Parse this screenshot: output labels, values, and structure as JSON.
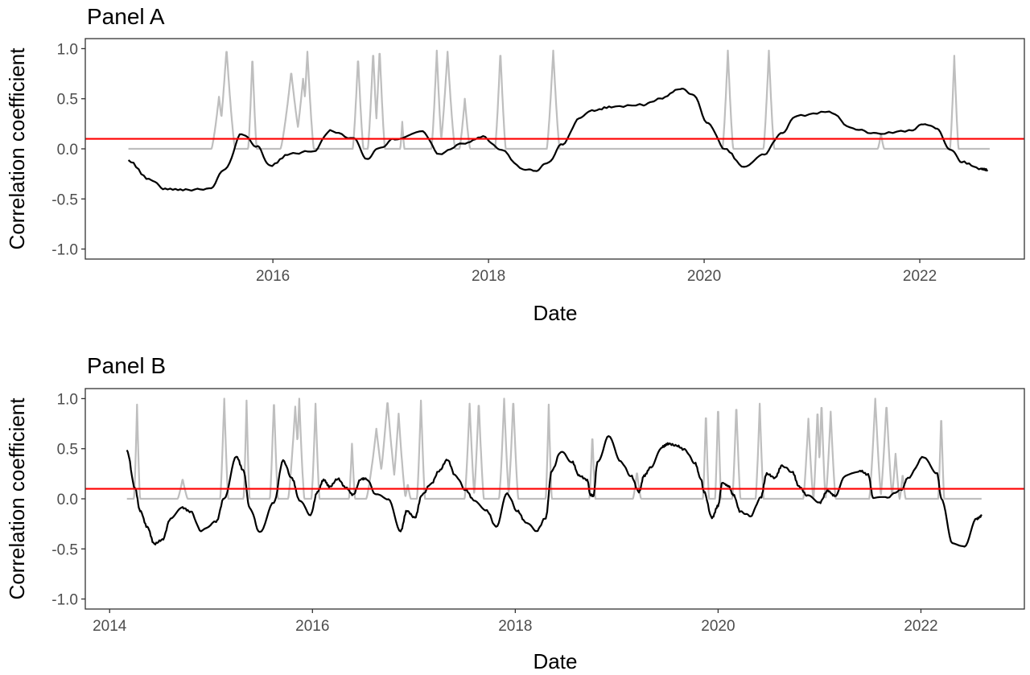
{
  "chart_data": [
    {
      "type": "line",
      "title": "Panel A",
      "xlabel": "Date",
      "ylabel": "Correlation coefficient",
      "xlim": [
        2014.26,
        2022.97
      ],
      "ylim": [
        -1.1,
        1.1
      ],
      "x_ticks": [
        2016,
        2018,
        2020,
        2022
      ],
      "x_tick_labels": [
        "2016",
        "2018",
        "2020",
        "2022"
      ],
      "y_ticks": [
        -1.0,
        -0.5,
        0.0,
        0.5,
        1.0
      ],
      "y_tick_labels": [
        "-1.0",
        "-0.5",
        "0.0",
        "0.5",
        "1.0"
      ],
      "grid": false,
      "reference_line": {
        "y": 0.1,
        "color": "#ff0000"
      },
      "series": [
        {
          "name": "correlation",
          "color": "#000000",
          "x": [
            2014.66,
            2014.85,
            2015.0,
            2015.19,
            2015.41,
            2015.56,
            2015.71,
            2015.86,
            2015.97,
            2016.16,
            2016.38,
            2016.53,
            2016.75,
            2016.87,
            2016.98,
            2017.13,
            2017.39,
            2017.54,
            2017.76,
            2017.95,
            2018.1,
            2018.32,
            2018.43,
            2018.54,
            2018.69,
            2018.84,
            2018.96,
            2019.14,
            2019.44,
            2019.59,
            2019.78,
            2019.89,
            2020.04,
            2020.19,
            2020.37,
            2020.56,
            2020.71,
            2020.86,
            2021.16,
            2021.38,
            2021.6,
            2021.9,
            2022.05,
            2022.16,
            2022.28,
            2022.39,
            2022.57,
            2022.63
          ],
          "y": [
            -0.12,
            -0.3,
            -0.4,
            -0.41,
            -0.4,
            -0.2,
            0.15,
            0.02,
            -0.17,
            -0.05,
            -0.02,
            0.18,
            0.1,
            -0.1,
            0.0,
            0.1,
            0.17,
            -0.05,
            0.05,
            0.12,
            0.0,
            -0.2,
            -0.22,
            -0.15,
            0.05,
            0.3,
            0.38,
            0.42,
            0.44,
            0.5,
            0.6,
            0.55,
            0.25,
            0.0,
            -0.18,
            -0.05,
            0.15,
            0.33,
            0.37,
            0.2,
            0.15,
            0.18,
            0.25,
            0.2,
            0.0,
            -0.13,
            -0.2,
            -0.21
          ]
        },
        {
          "name": "indicator",
          "color": "#bebebe",
          "x_range": [
            2014.66,
            2022.65
          ],
          "baseline": 0,
          "spikes": [
            {
              "x": 2015.5,
              "peak": 0.52,
              "half_width": 0.07
            },
            {
              "x": 2015.57,
              "peak": 1.0,
              "half_width": 0.08
            },
            {
              "x": 2015.81,
              "peak": 0.93,
              "half_width": 0.04
            },
            {
              "x": 2016.17,
              "peak": 0.77,
              "half_width": 0.1
            },
            {
              "x": 2016.28,
              "peak": 0.7,
              "half_width": 0.08
            },
            {
              "x": 2016.32,
              "peak": 0.97,
              "half_width": 0.06
            },
            {
              "x": 2016.79,
              "peak": 0.92,
              "half_width": 0.05
            },
            {
              "x": 2016.93,
              "peak": 0.98,
              "half_width": 0.05
            },
            {
              "x": 2016.99,
              "peak": 1.0,
              "half_width": 0.05
            },
            {
              "x": 2017.2,
              "peak": 0.27,
              "half_width": 0.02
            },
            {
              "x": 2017.52,
              "peak": 0.98,
              "half_width": 0.05
            },
            {
              "x": 2017.62,
              "peak": 0.97,
              "half_width": 0.07
            },
            {
              "x": 2017.78,
              "peak": 0.5,
              "half_width": 0.05
            },
            {
              "x": 2018.11,
              "peak": 0.98,
              "half_width": 0.05
            },
            {
              "x": 2018.6,
              "peak": 0.98,
              "half_width": 0.06
            },
            {
              "x": 2020.22,
              "peak": 0.98,
              "half_width": 0.05
            },
            {
              "x": 2020.6,
              "peak": 0.98,
              "half_width": 0.05
            },
            {
              "x": 2021.64,
              "peak": 0.15,
              "half_width": 0.03
            },
            {
              "x": 2022.32,
              "peak": 0.93,
              "half_width": 0.04
            }
          ]
        }
      ]
    },
    {
      "type": "line",
      "title": "Panel B",
      "xlabel": "Date",
      "ylabel": "Correlation coefficient",
      "xlim": [
        2013.76,
        2023.02
      ],
      "ylim": [
        -1.1,
        1.1
      ],
      "x_ticks": [
        2014,
        2016,
        2018,
        2020,
        2022
      ],
      "x_tick_labels": [
        "2014",
        "2016",
        "2018",
        "2020",
        "2022"
      ],
      "y_ticks": [
        -1.0,
        -0.5,
        0.0,
        0.5,
        1.0
      ],
      "y_tick_labels": [
        "-1.0",
        "-0.5",
        "0.0",
        "0.5",
        "1.0"
      ],
      "grid": false,
      "reference_line": {
        "y": 0.1,
        "color": "#ff0000"
      },
      "series": [
        {
          "name": "correlation",
          "color": "#000000",
          "x": [
            2014.17,
            2014.25,
            2014.3,
            2014.37,
            2014.44,
            2014.52,
            2014.6,
            2014.72,
            2014.8,
            2014.9,
            2015.05,
            2015.13,
            2015.25,
            2015.32,
            2015.38,
            2015.48,
            2015.62,
            2015.71,
            2015.8,
            2015.87,
            2015.98,
            2016.05,
            2016.11,
            2016.17,
            2016.25,
            2016.33,
            2016.4,
            2016.48,
            2016.53,
            2016.63,
            2016.75,
            2016.87,
            2016.93,
            2017.01,
            2017.08,
            2017.17,
            2017.25,
            2017.33,
            2017.41,
            2017.51,
            2017.59,
            2017.72,
            2017.81,
            2017.92,
            2018.02,
            2018.1,
            2018.21,
            2018.3,
            2018.36,
            2018.45,
            2018.56,
            2018.63,
            2018.71,
            2018.74,
            2018.77,
            2018.81,
            2018.92,
            2019.04,
            2019.14,
            2019.22,
            2019.27,
            2019.34,
            2019.45,
            2019.51,
            2019.59,
            2019.67,
            2019.77,
            2019.83,
            2019.86,
            2019.94,
            2020.0,
            2020.04,
            2020.1,
            2020.15,
            2020.22,
            2020.32,
            2020.42,
            2020.48,
            2020.56,
            2020.63,
            2020.73,
            2020.8,
            2020.88,
            2021.0,
            2021.08,
            2021.15,
            2021.26,
            2021.4,
            2021.48,
            2021.53,
            2021.65,
            2021.81,
            2021.87,
            2022.03,
            2022.16,
            2022.2,
            2022.31,
            2022.43,
            2022.55,
            2022.6
          ],
          "y": [
            0.48,
            0.11,
            -0.12,
            -0.28,
            -0.45,
            -0.41,
            -0.2,
            -0.09,
            -0.13,
            -0.32,
            -0.23,
            0.01,
            0.42,
            0.28,
            -0.09,
            -0.33,
            -0.04,
            0.38,
            0.2,
            -0.01,
            -0.16,
            0.07,
            0.19,
            0.12,
            0.2,
            0.11,
            0.04,
            0.2,
            0.2,
            0.04,
            -0.01,
            -0.32,
            -0.12,
            -0.19,
            0.04,
            0.15,
            0.28,
            0.39,
            0.23,
            0.09,
            -0.01,
            -0.12,
            -0.28,
            0.05,
            -0.12,
            -0.23,
            -0.32,
            -0.19,
            0.28,
            0.47,
            0.37,
            0.23,
            0.19,
            0.04,
            0.03,
            0.36,
            0.62,
            0.37,
            0.23,
            0.07,
            0.23,
            0.32,
            0.52,
            0.55,
            0.53,
            0.49,
            0.36,
            0.2,
            0.07,
            -0.19,
            -0.07,
            0.16,
            0.13,
            0.04,
            -0.13,
            -0.17,
            0.01,
            0.25,
            0.21,
            0.33,
            0.27,
            0.12,
            0.03,
            -0.04,
            0.08,
            0.03,
            0.23,
            0.28,
            0.24,
            0.01,
            0.01,
            0.09,
            0.21,
            0.42,
            0.25,
            0.01,
            -0.44,
            -0.47,
            -0.2,
            -0.17
          ]
        },
        {
          "name": "indicator",
          "color": "#bebebe",
          "x_range": [
            2014.17,
            2022.6
          ],
          "baseline": 0,
          "spikes": [
            {
              "x": 2014.27,
              "peak": 0.94,
              "half_width": 0.03
            },
            {
              "x": 2014.72,
              "peak": 0.2,
              "half_width": 0.05
            },
            {
              "x": 2015.13,
              "peak": 1.0,
              "half_width": 0.04
            },
            {
              "x": 2015.35,
              "peak": 0.98,
              "half_width": 0.03
            },
            {
              "x": 2015.62,
              "peak": 1.0,
              "half_width": 0.04
            },
            {
              "x": 2015.83,
              "peak": 0.92,
              "half_width": 0.07
            },
            {
              "x": 2015.87,
              "peak": 1.0,
              "half_width": 0.05
            },
            {
              "x": 2016.03,
              "peak": 0.95,
              "half_width": 0.04
            },
            {
              "x": 2016.39,
              "peak": 0.55,
              "half_width": 0.03
            },
            {
              "x": 2016.63,
              "peak": 0.7,
              "half_width": 0.1
            },
            {
              "x": 2016.74,
              "peak": 0.98,
              "half_width": 0.1
            },
            {
              "x": 2016.85,
              "peak": 0.85,
              "half_width": 0.07
            },
            {
              "x": 2016.94,
              "peak": 0.15,
              "half_width": 0.03
            },
            {
              "x": 2017.07,
              "peak": 0.98,
              "half_width": 0.04
            },
            {
              "x": 2017.55,
              "peak": 0.95,
              "half_width": 0.05
            },
            {
              "x": 2017.64,
              "peak": 0.98,
              "half_width": 0.05
            },
            {
              "x": 2017.89,
              "peak": 1.0,
              "half_width": 0.05
            },
            {
              "x": 2017.98,
              "peak": 1.0,
              "half_width": 0.05
            },
            {
              "x": 2018.33,
              "peak": 0.94,
              "half_width": 0.03
            },
            {
              "x": 2018.76,
              "peak": 0.65,
              "half_width": 0.03
            },
            {
              "x": 2019.2,
              "peak": 0.27,
              "half_width": 0.04
            },
            {
              "x": 2019.88,
              "peak": 0.88,
              "half_width": 0.03
            },
            {
              "x": 2020.0,
              "peak": 0.95,
              "half_width": 0.03
            },
            {
              "x": 2020.18,
              "peak": 0.95,
              "half_width": 0.04
            },
            {
              "x": 2020.41,
              "peak": 0.95,
              "half_width": 0.04
            },
            {
              "x": 2020.89,
              "peak": 0.8,
              "half_width": 0.05
            },
            {
              "x": 2020.98,
              "peak": 0.9,
              "half_width": 0.04
            },
            {
              "x": 2021.02,
              "peak": 0.97,
              "half_width": 0.04
            },
            {
              "x": 2021.11,
              "peak": 0.87,
              "half_width": 0.05
            },
            {
              "x": 2021.55,
              "peak": 1.0,
              "half_width": 0.06
            },
            {
              "x": 2021.66,
              "peak": 0.95,
              "half_width": 0.06
            },
            {
              "x": 2021.75,
              "peak": 0.45,
              "half_width": 0.04
            },
            {
              "x": 2021.82,
              "peak": 0.25,
              "half_width": 0.03
            },
            {
              "x": 2022.2,
              "peak": 0.85,
              "half_width": 0.03
            }
          ]
        }
      ]
    }
  ]
}
